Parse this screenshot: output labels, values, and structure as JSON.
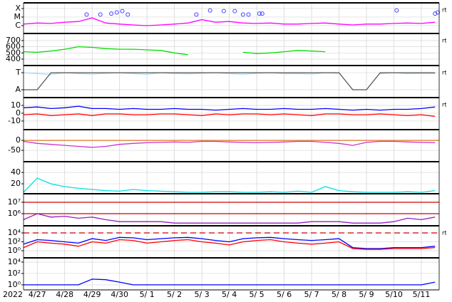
{
  "chart_data": [
    {
      "type": "line",
      "log": true,
      "right_label": "rt",
      "xlim": [
        0,
        15.15
      ],
      "ylim": [
        1.2e-07,
        0.00046
      ],
      "yticks": [
        {
          "value": 0.0001,
          "label": "X"
        },
        {
          "value": 1e-05,
          "label": "M"
        },
        {
          "value": 1e-06,
          "label": "C"
        }
      ],
      "x": [
        0,
        0.5,
        1,
        1.5,
        2,
        2.5,
        3,
        3.5,
        4,
        4.5,
        5,
        5.5,
        6,
        6.5,
        7,
        7.5,
        8,
        8.5,
        9,
        9.5,
        10,
        10.5,
        11,
        11.5,
        12,
        12.5,
        13,
        13.5,
        14,
        14.5,
        15
      ],
      "series": [
        {
          "color": "#ff00ff",
          "values": [
            1.5e-06,
            2e-06,
            1.8e-06,
            2.5e-06,
            3e-06,
            8e-06,
            2e-06,
            1.5e-06,
            1.2e-06,
            1e-06,
            1.2e-06,
            1.5e-06,
            2e-06,
            5e-06,
            2.5e-06,
            3e-06,
            2e-06,
            1.8e-06,
            2e-06,
            1.5e-06,
            1.5e-06,
            1.8e-06,
            2e-06,
            1.5e-06,
            1.2e-06,
            1.5e-06,
            1.5e-06,
            1.8e-06,
            2e-06,
            1.8e-06,
            2.5e-06
          ]
        }
      ],
      "events": {
        "color": "#4040ff",
        "x": [
          2.3,
          2.8,
          3.2,
          3.4,
          3.6,
          3.8,
          6.3,
          6.8,
          7.3,
          7.7,
          8.0,
          8.2,
          8.6,
          8.7,
          13.6,
          15.0,
          15.1
        ],
        "values": [
          2e-05,
          2e-05,
          2.5e-05,
          3.5e-05,
          5e-05,
          2e-05,
          2e-05,
          6e-05,
          5e-05,
          5e-05,
          2e-05,
          2e-05,
          2.5e-05,
          2.5e-05,
          6e-05,
          2.5e-05,
          3.5e-05
        ]
      }
    },
    {
      "type": "line",
      "right_label": "rt",
      "xlim": [
        0,
        15.15
      ],
      "ylim": [
        296,
        815
      ],
      "yticks": [
        700,
        600,
        500,
        400
      ],
      "x": [
        0,
        0.5,
        1,
        1.5,
        2,
        2.5,
        3,
        3.5,
        4,
        4.5,
        5,
        5.5,
        6,
        6.5,
        7,
        7.5,
        8,
        8.5,
        9,
        9.5,
        10,
        10.5,
        11,
        11.5,
        12,
        12.5,
        13,
        13.5,
        14,
        14.5,
        15
      ],
      "series": [
        {
          "color": "#00e000",
          "values": [
            520,
            510,
            530,
            560,
            600,
            590,
            570,
            560,
            560,
            550,
            540,
            500,
            470,
            null,
            null,
            null,
            510,
            490,
            500,
            520,
            540,
            530,
            520,
            null,
            null,
            null,
            null,
            null,
            null,
            null,
            null
          ]
        }
      ]
    },
    {
      "type": "line",
      "right_label": "rt",
      "xlim": [
        0,
        15.15
      ],
      "ylim": [
        -0.46,
        1.42
      ],
      "yticks": [
        {
          "value": 1,
          "label": "T"
        },
        {
          "value": 0,
          "label": "A"
        }
      ],
      "x": [
        0,
        0.5,
        1,
        1.5,
        2,
        2.5,
        3,
        3.5,
        4,
        4.5,
        5,
        5.5,
        6,
        6.5,
        7,
        7.5,
        8,
        8.5,
        9,
        9.5,
        10,
        10.5,
        11,
        11.5,
        12,
        12.5,
        13,
        13.5,
        14,
        14.5,
        15
      ],
      "series": [
        {
          "color": "#a8dcff",
          "values": [
            1,
            0.95,
            0.9,
            1,
            0.95,
            0.92,
            0.96,
            1,
            0.95,
            0.9,
            1,
            0.95,
            0.93,
            0.97,
            1,
            0.95,
            0.9,
            0.96,
            1,
            0.94,
            0.95,
            0.92,
            1,
            0.97,
            null,
            null,
            0.95,
            1,
            0.94,
            0.96,
            0.95
          ]
        },
        {
          "color": "#555555",
          "values": [
            0,
            0,
            1,
            1,
            1,
            1,
            1,
            1,
            1,
            1,
            1,
            1,
            1,
            1,
            1,
            1,
            1,
            1,
            1,
            1,
            1,
            1,
            1,
            1,
            0,
            0,
            1,
            1,
            1,
            1,
            1
          ]
        }
      ]
    },
    {
      "type": "line",
      "right_label": "rt",
      "xlim": [
        0,
        15.15
      ],
      "ylim": [
        -21,
        20
      ],
      "yticks": [
        10,
        0,
        -10
      ],
      "x": [
        0,
        0.5,
        1,
        1.5,
        2,
        2.5,
        3,
        3.5,
        4,
        4.5,
        5,
        5.5,
        6,
        6.5,
        7,
        7.5,
        8,
        8.5,
        9,
        9.5,
        10,
        10.5,
        11,
        11.5,
        12,
        12.5,
        13,
        13.5,
        14,
        14.5,
        15
      ],
      "series": [
        {
          "color": "#0000ff",
          "values": [
            7,
            8,
            6,
            7,
            9,
            6,
            6,
            5,
            6,
            5,
            5,
            6,
            5,
            5,
            4,
            5,
            6,
            5,
            5,
            6,
            5,
            5,
            6,
            5,
            4,
            5,
            4,
            5,
            5,
            6,
            8
          ]
        },
        {
          "color": "#ff0000",
          "values": [
            -2,
            -1,
            -3,
            -2,
            -1,
            -3,
            -1,
            -1,
            -2,
            -2,
            -1,
            -1,
            -2,
            -3,
            -1,
            -2,
            -1,
            -1,
            -2,
            -1,
            -2,
            -3,
            -1,
            -1,
            -2,
            -2,
            -1,
            -2,
            -3,
            -2,
            -4
          ]
        }
      ]
    },
    {
      "type": "line",
      "xlim": [
        0,
        15.15
      ],
      "ylim": [
        -107,
        54
      ],
      "yticks": [
        0,
        -50
      ],
      "hlines": [
        {
          "value": 0,
          "color": "#e07020"
        }
      ],
      "x": [
        0,
        0.5,
        1,
        1.5,
        2,
        2.5,
        3,
        3.5,
        4,
        4.5,
        5,
        5.5,
        6,
        6.5,
        7,
        7.5,
        8,
        8.5,
        9,
        9.5,
        10,
        10.5,
        11,
        11.5,
        12,
        12.5,
        13,
        13.5,
        14,
        14.5,
        15
      ],
      "series": [
        {
          "color": "#cc33cc",
          "values": [
            -5,
            -15,
            -20,
            -25,
            -30,
            -35,
            -30,
            -20,
            -15,
            -12,
            -10,
            -8,
            -10,
            -5,
            -5,
            -8,
            -10,
            -12,
            -10,
            -8,
            -5,
            -5,
            -10,
            -15,
            -25,
            -10,
            -5,
            -5,
            -8,
            -10,
            -12
          ]
        }
      ]
    },
    {
      "type": "line",
      "xlim": [
        0,
        15.15
      ],
      "ylim": [
        2.5,
        59
      ],
      "yticks": [
        40,
        20
      ],
      "x": [
        0,
        0.5,
        1,
        1.5,
        2,
        2.5,
        3,
        3.5,
        4,
        4.5,
        5,
        5.5,
        6,
        6.5,
        7,
        7.5,
        8,
        8.5,
        9,
        9.5,
        10,
        10.5,
        11,
        11.5,
        12,
        12.5,
        13,
        13.5,
        14,
        14.5,
        15
      ],
      "series": [
        {
          "color": "#00e0e0",
          "values": [
            5,
            30,
            20,
            15,
            12,
            10,
            8,
            7,
            10,
            8,
            7,
            6,
            5,
            5,
            6,
            6,
            5,
            5,
            6,
            5,
            7,
            5,
            15,
            8,
            6,
            5,
            5,
            5,
            6,
            5,
            8
          ]
        }
      ]
    },
    {
      "type": "line",
      "log": true,
      "xlim": [
        0,
        15.15
      ],
      "ylim": [
        87000,
        56000000
      ],
      "yticks": [
        {
          "value": 10000000,
          "label": "10⁷"
        },
        {
          "value": 1000000,
          "label": "10⁶"
        }
      ],
      "hlines": [
        {
          "value": 10000000,
          "color": "#d00000"
        },
        {
          "value": 1000000,
          "color": "#d00000"
        }
      ],
      "x": [
        0,
        0.5,
        1,
        1.5,
        2,
        2.5,
        3,
        3.5,
        4,
        4.5,
        5,
        5.5,
        6,
        6.5,
        7,
        7.5,
        8,
        8.5,
        9,
        9.5,
        10,
        10.5,
        11,
        11.5,
        12,
        12.5,
        13,
        13.5,
        14,
        14.5,
        15
      ],
      "series": [
        {
          "color": "#9020c0",
          "values": [
            300000,
            1000000,
            500000,
            600000,
            400000,
            500000,
            300000,
            200000,
            200000,
            200000,
            200000,
            150000,
            150000,
            150000,
            150000,
            150000,
            150000,
            150000,
            150000,
            150000,
            150000,
            200000,
            200000,
            200000,
            150000,
            150000,
            150000,
            200000,
            400000,
            300000,
            500000
          ]
        }
      ]
    },
    {
      "type": "line",
      "log": true,
      "right_label": "rt",
      "xlim": [
        0,
        15.15
      ],
      "ylim": [
        0.025,
        400000
      ],
      "yticks": [
        {
          "value": 10000,
          "label": "10⁴"
        },
        {
          "value": 100,
          "label": "10²"
        },
        {
          "value": 1,
          "label": "10⁰"
        }
      ],
      "hlines": [
        {
          "value": 10000,
          "color": "#d00000",
          "dashed": true
        }
      ],
      "x": [
        0,
        0.5,
        1,
        1.5,
        2,
        2.5,
        3,
        3.5,
        4,
        4.5,
        5,
        5.5,
        6,
        6.5,
        7,
        7.5,
        8,
        8.5,
        9,
        9.5,
        10,
        10.5,
        11,
        11.5,
        12,
        12.5,
        13,
        13.5,
        14,
        14.5,
        15
      ],
      "series": [
        {
          "color": "#0000ff",
          "values": [
            30,
            300,
            200,
            100,
            50,
            500,
            200,
            1000,
            800,
            300,
            500,
            800,
            1000,
            500,
            200,
            100,
            500,
            800,
            1000,
            500,
            300,
            200,
            300,
            500,
            5,
            3,
            3,
            5,
            5,
            5,
            10
          ]
        },
        {
          "color": "#ff0000",
          "values": [
            5,
            100,
            50,
            30,
            10,
            100,
            50,
            300,
            200,
            50,
            100,
            200,
            300,
            100,
            50,
            20,
            100,
            200,
            300,
            100,
            50,
            30,
            50,
            100,
            3,
            2,
            2,
            3,
            3,
            3,
            5
          ]
        }
      ]
    },
    {
      "type": "line",
      "log": true,
      "xlim": [
        0,
        15.15
      ],
      "ylim": [
        0.13,
        56000
      ],
      "yticks": [
        {
          "value": 10000,
          "label": "10⁴"
        },
        {
          "value": 100,
          "label": "10²"
        },
        {
          "value": 1,
          "label": "10⁰"
        }
      ],
      "xlabel": "2022",
      "xticks": [
        {
          "value": 0.5,
          "label": "4/27"
        },
        {
          "value": 1.5,
          "label": "4/28"
        },
        {
          "value": 2.5,
          "label": "4/29"
        },
        {
          "value": 3.5,
          "label": "4/30"
        },
        {
          "value": 4.5,
          "label": "5/ 1"
        },
        {
          "value": 5.5,
          "label": "5/ 2"
        },
        {
          "value": 6.5,
          "label": "5/ 3"
        },
        {
          "value": 7.5,
          "label": "5/ 4"
        },
        {
          "value": 8.5,
          "label": "5/ 5"
        },
        {
          "value": 9.5,
          "label": "5/ 6"
        },
        {
          "value": 10.5,
          "label": "5/ 7"
        },
        {
          "value": 11.5,
          "label": "5/ 8"
        },
        {
          "value": 12.5,
          "label": "5/ 9"
        },
        {
          "value": 13.5,
          "label": "5/10"
        },
        {
          "value": 14.5,
          "label": "5/11"
        }
      ],
      "x": [
        0,
        0.5,
        1,
        1.5,
        2,
        2.5,
        3,
        3.5,
        4,
        4.5,
        5,
        5.5,
        6,
        6.5,
        7,
        7.5,
        8,
        8.5,
        9,
        9.5,
        10,
        10.5,
        11,
        11.5,
        12,
        12.5,
        13,
        13.5,
        14,
        14.5,
        15
      ],
      "series": [
        {
          "color": "#0000ff",
          "values": [
            1,
            1,
            1,
            1,
            1,
            10,
            8,
            3,
            1,
            1,
            1,
            1,
            1,
            1,
            1,
            1,
            1,
            1,
            1,
            1,
            1,
            1,
            1,
            1,
            1,
            1,
            1,
            1,
            1,
            1,
            3
          ]
        }
      ]
    }
  ]
}
